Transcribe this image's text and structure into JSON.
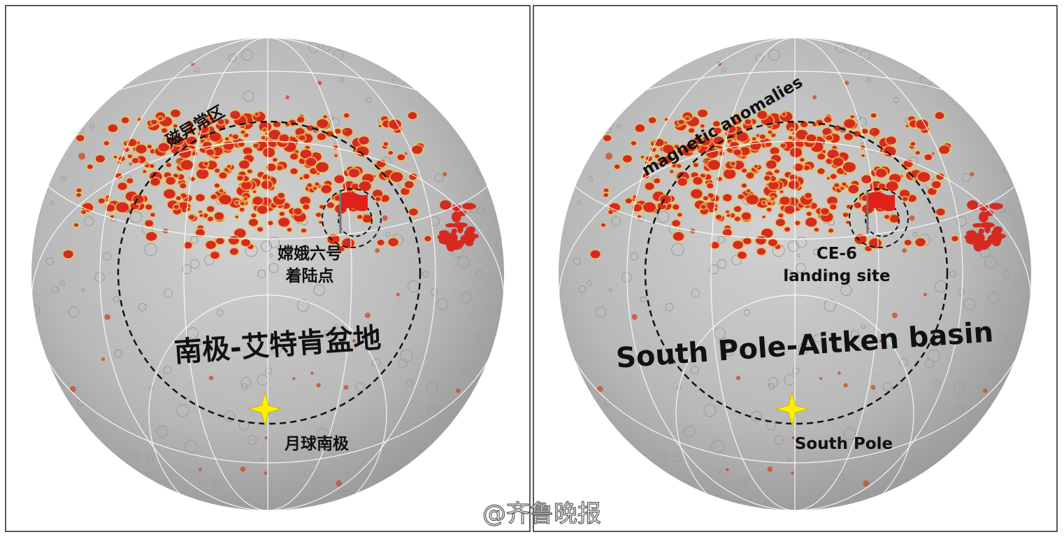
{
  "panels": [
    {
      "magnetic_label": "磁异常区",
      "landing_label": [
        "嫦娥六号",
        "着陆点"
      ],
      "basin_label": "南极-艾特肯盆地",
      "pole_label": "月球南极"
    },
    {
      "magnetic_label": "magnetic anomalies",
      "landing_label": [
        "CE-6",
        "landing site"
      ],
      "basin_label": "South Pole-Aitken basin",
      "pole_label": "South Pole"
    }
  ],
  "watermark": "@齐鲁晚报"
}
